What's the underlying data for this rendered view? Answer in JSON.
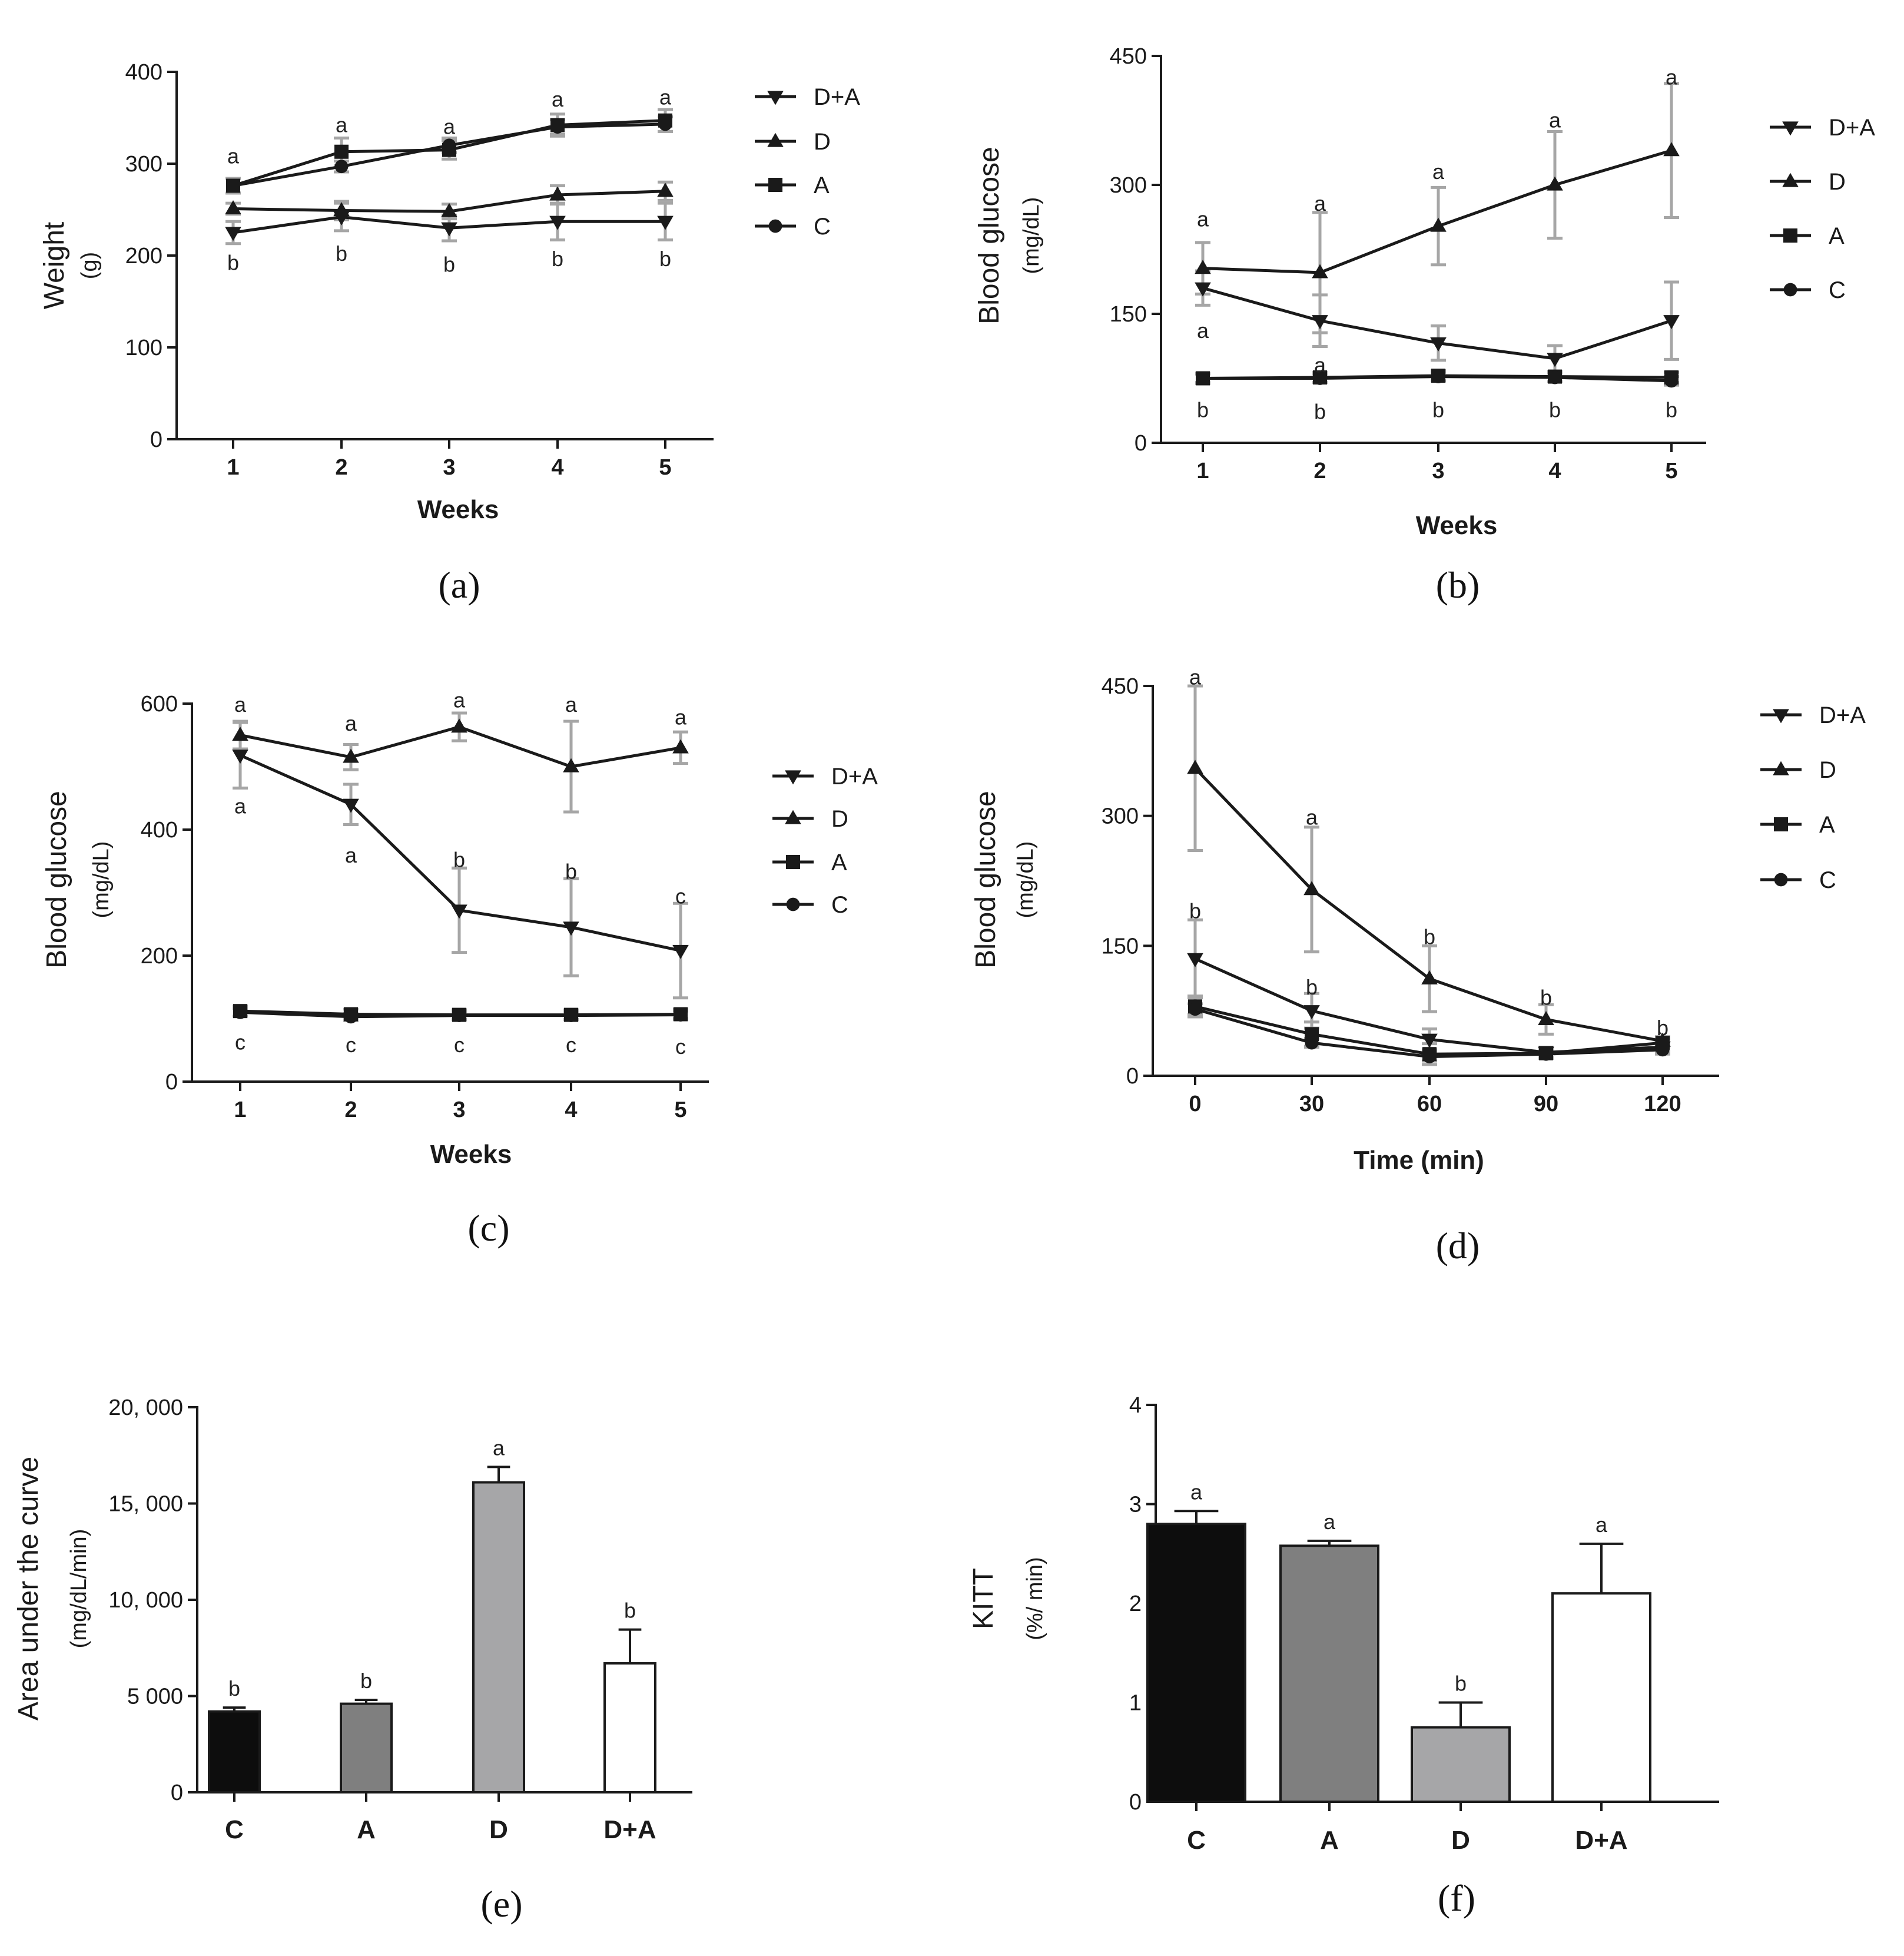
{
  "colors": {
    "line": "#1a1a1a",
    "error": "#a6a6a6",
    "bar_C": "#0d0d0d",
    "bar_A": "#7f7f7f",
    "bar_D": "#a6a6a8",
    "bar_DA": "#ffffff"
  },
  "chart_data": [
    {
      "id": "a",
      "type": "line",
      "caption": "(a)",
      "xlabel": "Weeks",
      "ylabel": "Weight",
      "yunit": "(g)",
      "x": [
        1,
        2,
        3,
        4,
        5
      ],
      "xticks": [
        "1",
        "2",
        "3",
        "4",
        "5"
      ],
      "ylim": [
        0,
        400
      ],
      "yticks": [
        0,
        100,
        200,
        300,
        400
      ],
      "ytick_labels": [
        "0",
        "100",
        "200",
        "300",
        "400"
      ],
      "legend": [
        "D+A",
        "D",
        "A",
        "C"
      ],
      "series": [
        {
          "name": "D+A",
          "marker": "tri-down",
          "values": [
            225,
            242,
            230,
            237,
            237
          ],
          "errors": [
            12,
            15,
            14,
            20,
            20
          ]
        },
        {
          "name": "D",
          "marker": "tri-up",
          "values": [
            251,
            249,
            248,
            266,
            270
          ],
          "errors": [
            6,
            10,
            8,
            10,
            10
          ]
        },
        {
          "name": "A",
          "marker": "square",
          "values": [
            276,
            313,
            315,
            342,
            347
          ],
          "errors": [
            8,
            15,
            10,
            12,
            12
          ]
        },
        {
          "name": "C",
          "marker": "circle",
          "values": [
            276,
            297,
            320,
            340,
            343
          ],
          "errors": [
            8,
            6,
            8,
            8,
            8
          ]
        }
      ],
      "annotations": [
        {
          "x": 1,
          "y": 308,
          "text": "a"
        },
        {
          "x": 2,
          "y": 342,
          "text": "a"
        },
        {
          "x": 3,
          "y": 340,
          "text": "a"
        },
        {
          "x": 4,
          "y": 370,
          "text": "a"
        },
        {
          "x": 5,
          "y": 372,
          "text": "a"
        },
        {
          "x": 1,
          "y": 192,
          "text": "b"
        },
        {
          "x": 2,
          "y": 202,
          "text": "b"
        },
        {
          "x": 3,
          "y": 190,
          "text": "b"
        },
        {
          "x": 4,
          "y": 196,
          "text": "b"
        },
        {
          "x": 5,
          "y": 196,
          "text": "b"
        }
      ]
    },
    {
      "id": "b",
      "type": "line",
      "caption": "(b)",
      "xlabel": "Weeks",
      "ylabel": "Blood glucose",
      "yunit": "(mg/dL)",
      "x": [
        1,
        2,
        3,
        4,
        5
      ],
      "xticks": [
        "1",
        "2",
        "3",
        "4",
        "5"
      ],
      "ylim": [
        0,
        450
      ],
      "yticks": [
        0,
        150,
        300,
        450
      ],
      "ytick_labels": [
        "0",
        "150",
        "300",
        "450"
      ],
      "legend": [
        "D+A",
        "D",
        "A",
        "C"
      ],
      "series": [
        {
          "name": "D+A",
          "marker": "tri-down",
          "values": [
            180,
            142,
            116,
            98,
            142
          ],
          "errors": [
            20,
            30,
            20,
            15,
            45
          ]
        },
        {
          "name": "D",
          "marker": "tri-up",
          "values": [
            203,
            198,
            252,
            300,
            340
          ],
          "errors": [
            30,
            70,
            45,
            62,
            78
          ]
        },
        {
          "name": "A",
          "marker": "square",
          "values": [
            75,
            76,
            78,
            77,
            76
          ],
          "errors": [
            6,
            6,
            6,
            6,
            6
          ]
        },
        {
          "name": "C",
          "marker": "circle",
          "values": [
            75,
            75,
            77,
            76,
            72
          ],
          "errors": [
            5,
            5,
            5,
            5,
            5
          ]
        }
      ],
      "annotations": [
        {
          "x": 1,
          "y": 260,
          "text": "a"
        },
        {
          "x": 2,
          "y": 278,
          "text": "a"
        },
        {
          "x": 3,
          "y": 315,
          "text": "a"
        },
        {
          "x": 4,
          "y": 375,
          "text": "a"
        },
        {
          "x": 5,
          "y": 425,
          "text": "a"
        },
        {
          "x": 1,
          "y": 130,
          "text": "a"
        },
        {
          "x": 2,
          "y": 90,
          "text": "a"
        },
        {
          "x": 1,
          "y": 38,
          "text": "b"
        },
        {
          "x": 2,
          "y": 36,
          "text": "b"
        },
        {
          "x": 3,
          "y": 38,
          "text": "b"
        },
        {
          "x": 4,
          "y": 38,
          "text": "b"
        },
        {
          "x": 5,
          "y": 38,
          "text": "b"
        }
      ]
    },
    {
      "id": "c",
      "type": "line",
      "caption": "(c)",
      "xlabel": "Weeks",
      "ylabel": "Blood glucose",
      "yunit": "(mg/dL)",
      "x": [
        1,
        2,
        3,
        4,
        5
      ],
      "xticks": [
        "1",
        "2",
        "3",
        "4",
        "5"
      ],
      "ylim": [
        0,
        600
      ],
      "yticks": [
        0,
        200,
        400,
        600
      ],
      "ytick_labels": [
        "0",
        "200",
        "400",
        "600"
      ],
      "legend": [
        "D+A",
        "D",
        "A",
        "C"
      ],
      "series": [
        {
          "name": "D+A",
          "marker": "tri-down",
          "values": [
            518,
            440,
            272,
            245,
            208
          ],
          "errors": [
            52,
            32,
            67,
            77,
            75
          ]
        },
        {
          "name": "D",
          "marker": "tri-up",
          "values": [
            550,
            515,
            563,
            500,
            530
          ],
          "errors": [
            22,
            20,
            22,
            72,
            25
          ]
        },
        {
          "name": "A",
          "marker": "square",
          "values": [
            112,
            107,
            106,
            106,
            107
          ],
          "errors": [
            8,
            8,
            8,
            8,
            8
          ]
        },
        {
          "name": "C",
          "marker": "circle",
          "values": [
            110,
            103,
            105,
            105,
            106
          ],
          "errors": [
            6,
            6,
            6,
            6,
            6
          ]
        }
      ],
      "annotations": [
        {
          "x": 1,
          "y": 598,
          "text": "a"
        },
        {
          "x": 2,
          "y": 568,
          "text": "a"
        },
        {
          "x": 3,
          "y": 605,
          "text": "a"
        },
        {
          "x": 4,
          "y": 598,
          "text": "a"
        },
        {
          "x": 5,
          "y": 578,
          "text": "a"
        },
        {
          "x": 1,
          "y": 437,
          "text": "a"
        },
        {
          "x": 2,
          "y": 359,
          "text": "a"
        },
        {
          "x": 3,
          "y": 352,
          "text": "b"
        },
        {
          "x": 4,
          "y": 333,
          "text": "b"
        },
        {
          "x": 5,
          "y": 294,
          "text": "c"
        },
        {
          "x": 1,
          "y": 62,
          "text": "c"
        },
        {
          "x": 2,
          "y": 58,
          "text": "c"
        },
        {
          "x": 3,
          "y": 58,
          "text": "c"
        },
        {
          "x": 4,
          "y": 58,
          "text": "c"
        },
        {
          "x": 5,
          "y": 55,
          "text": "c"
        }
      ]
    },
    {
      "id": "d",
      "type": "line",
      "caption": "(d)",
      "xlabel": "Time (min)",
      "ylabel": "Blood glucose",
      "yunit": "(mg/dL)",
      "x": [
        0,
        30,
        60,
        90,
        120
      ],
      "xticks": [
        "0",
        "30",
        "60",
        "90",
        "120"
      ],
      "ylim": [
        0,
        450
      ],
      "yticks": [
        0,
        150,
        300,
        450
      ],
      "ytick_labels": [
        "0",
        "150",
        "300",
        "450"
      ],
      "legend": [
        "D+A",
        "D",
        "A",
        "C"
      ],
      "series": [
        {
          "name": "D+A",
          "marker": "tri-down",
          "values": [
            135,
            75,
            42,
            27,
            33
          ],
          "errors": [
            45,
            20,
            12,
            6,
            5
          ]
        },
        {
          "name": "D",
          "marker": "tri-up",
          "values": [
            355,
            215,
            112,
            65,
            40
          ],
          "errors": [
            95,
            72,
            38,
            17,
            5
          ]
        },
        {
          "name": "A",
          "marker": "square",
          "values": [
            80,
            48,
            25,
            26,
            38
          ],
          "errors": [
            12,
            14,
            12,
            6,
            5
          ]
        },
        {
          "name": "C",
          "marker": "circle",
          "values": [
            77,
            38,
            22,
            25,
            30
          ],
          "errors": [
            6,
            5,
            5,
            5,
            5
          ]
        }
      ],
      "annotations": [
        {
          "x": 0,
          "y": 460,
          "text": "a"
        },
        {
          "x": 30,
          "y": 298,
          "text": "a"
        },
        {
          "x": 0,
          "y": 190,
          "text": "b"
        },
        {
          "x": 30,
          "y": 102,
          "text": "b"
        },
        {
          "x": 60,
          "y": 160,
          "text": "b"
        },
        {
          "x": 90,
          "y": 90,
          "text": "b"
        },
        {
          "x": 120,
          "y": 55,
          "text": "b"
        }
      ]
    },
    {
      "id": "e",
      "type": "bar",
      "caption": "(e)",
      "xlabel": "",
      "ylabel": "Area under the curve",
      "yunit": "(mg/dL/min)",
      "categories": [
        "C",
        "A",
        "D",
        "D+A"
      ],
      "values": [
        4200,
        4600,
        16100,
        6700
      ],
      "errors": [
        200,
        200,
        800,
        1750
      ],
      "letters": [
        "b",
        "b",
        "a",
        "b"
      ],
      "ylim": [
        0,
        20000
      ],
      "yticks": [
        0,
        5000,
        10000,
        15000,
        20000
      ],
      "ytick_labels": [
        "0",
        "5 000",
        "10, 000",
        "15, 000",
        "20, 000"
      ]
    },
    {
      "id": "f",
      "type": "bar",
      "caption": "(f)",
      "xlabel": "",
      "ylabel": "KITT",
      "yunit": "(%/ min)",
      "categories": [
        "C",
        "A",
        "D",
        "D+A"
      ],
      "values": [
        2.8,
        2.58,
        0.75,
        2.1
      ],
      "errors": [
        0.13,
        0.05,
        0.25,
        0.5
      ],
      "letters": [
        "a",
        "a",
        "b",
        "a"
      ],
      "ylim": [
        0,
        4
      ],
      "yticks": [
        0,
        1,
        2,
        3,
        4
      ],
      "ytick_labels": [
        "0",
        "1",
        "2",
        "3",
        "4"
      ]
    }
  ]
}
